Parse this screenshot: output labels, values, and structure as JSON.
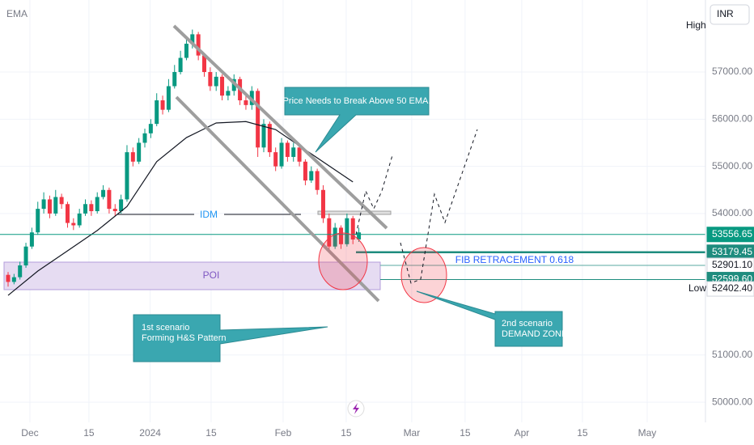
{
  "chart_data": {
    "type": "candlestick",
    "currency": "INR",
    "up_color": "#089981",
    "down_color": "#f23645",
    "ohlc": [
      [
        52700,
        52760,
        52450,
        52550
      ],
      [
        52550,
        52720,
        52500,
        52650
      ],
      [
        52650,
        52980,
        52600,
        52900
      ],
      [
        52900,
        53380,
        52850,
        53300
      ],
      [
        53300,
        53700,
        53250,
        53600
      ],
      [
        53600,
        54250,
        53550,
        54100
      ],
      [
        54100,
        54450,
        54000,
        54300
      ],
      [
        54300,
        54380,
        53900,
        54000
      ],
      [
        54000,
        54500,
        53950,
        54350
      ],
      [
        54350,
        54420,
        54100,
        54200
      ],
      [
        54200,
        54250,
        53700,
        53800
      ],
      [
        53800,
        53900,
        53650,
        53750
      ],
      [
        53750,
        54100,
        53700,
        54000
      ],
      [
        54000,
        54300,
        53950,
        54200
      ],
      [
        54200,
        54280,
        53950,
        54050
      ],
      [
        54050,
        54450,
        54000,
        54350
      ],
      [
        54350,
        54600,
        54300,
        54500
      ],
      [
        54500,
        54550,
        54000,
        54100
      ],
      [
        54100,
        54200,
        53950,
        54050
      ],
      [
        54050,
        54400,
        54000,
        54300
      ],
      [
        54300,
        55450,
        54250,
        55300
      ],
      [
        55300,
        55400,
        55000,
        55100
      ],
      [
        55100,
        55600,
        55050,
        55500
      ],
      [
        55500,
        55800,
        55400,
        55700
      ],
      [
        55700,
        56000,
        55600,
        55900
      ],
      [
        55900,
        56550,
        55850,
        56400
      ],
      [
        56400,
        56500,
        56100,
        56200
      ],
      [
        56200,
        56850,
        56150,
        56700
      ],
      [
        56700,
        57150,
        56650,
        57000
      ],
      [
        57000,
        57450,
        56950,
        57300
      ],
      [
        57300,
        57750,
        57250,
        57600
      ],
      [
        57600,
        57900,
        57500,
        57800
      ],
      [
        57800,
        57850,
        57250,
        57350
      ],
      [
        57350,
        57400,
        56900,
        57000
      ],
      [
        57000,
        57100,
        56600,
        56700
      ],
      [
        56700,
        57000,
        56600,
        56900
      ],
      [
        56900,
        56950,
        56400,
        56500
      ],
      [
        56500,
        56700,
        56400,
        56600
      ],
      [
        56600,
        56950,
        56500,
        56850
      ],
      [
        56850,
        56900,
        56300,
        56400
      ],
      [
        56400,
        56500,
        56200,
        56300
      ],
      [
        56300,
        56700,
        56200,
        56600
      ],
      [
        56600,
        56650,
        55200,
        55400
      ],
      [
        55400,
        56000,
        55300,
        55900
      ],
      [
        55900,
        55950,
        55200,
        55300
      ],
      [
        55300,
        55400,
        54900,
        55000
      ],
      [
        55000,
        55600,
        54950,
        55500
      ],
      [
        55500,
        55550,
        55100,
        55200
      ],
      [
        55200,
        55500,
        55100,
        55400
      ],
      [
        55400,
        55450,
        55000,
        55100
      ],
      [
        55100,
        55150,
        54600,
        54700
      ],
      [
        54700,
        55000,
        54650,
        54900
      ],
      [
        54900,
        54950,
        54400,
        54500
      ],
      [
        54500,
        54600,
        53800,
        53900
      ],
      [
        53900,
        54000,
        53200,
        53300
      ],
      [
        53300,
        53800,
        53250,
        53700
      ],
      [
        53700,
        53750,
        53250,
        53350
      ],
      [
        53350,
        54000,
        53300,
        53900
      ],
      [
        53900,
        53950,
        53350,
        53450
      ],
      [
        53450,
        53700,
        53400,
        53600
      ]
    ],
    "ema": {
      "name": "EMA",
      "color": "#131722",
      "x": [
        0,
        5,
        10,
        15,
        20,
        25,
        30,
        35,
        40,
        45,
        50,
        55,
        58
      ],
      "values": [
        52265,
        52780,
        53210,
        53640,
        54150,
        55100,
        55610,
        55920,
        55950,
        55780,
        55350,
        54925,
        54670
      ]
    },
    "xlim": [
      -1.36,
      117.3
    ],
    "xticks": [
      {
        "value": 3.67,
        "label": "Dec"
      },
      {
        "value": 13.6,
        "label": "15"
      },
      {
        "value": 23.9,
        "label": "2024"
      },
      {
        "value": 34.15,
        "label": "15"
      },
      {
        "value": 46.26,
        "label": "Feb"
      },
      {
        "value": 56.87,
        "label": "15"
      },
      {
        "value": 67.89,
        "label": "Mar"
      },
      {
        "value": 76.87,
        "label": "15"
      },
      {
        "value": 86.4,
        "label": "Apr"
      },
      {
        "value": 96.6,
        "label": "15"
      },
      {
        "value": 107.5,
        "label": "May"
      }
    ],
    "ylim": [
      49573,
      58527
    ],
    "yticks": [
      {
        "value": 50000,
        "label": "50000.00"
      },
      {
        "value": 51000,
        "label": "51000.00"
      },
      {
        "value": 54000,
        "label": "54000.00"
      },
      {
        "value": 55000,
        "label": "55000.00"
      },
      {
        "value": 56000,
        "label": "56000.00"
      },
      {
        "value": 57000,
        "label": "57000.00"
      }
    ],
    "grid": true,
    "high_label": "High",
    "price_lines": [
      {
        "value": 53556.65,
        "label": "53556.65",
        "color": "#089981"
      },
      {
        "value": 53179.45,
        "label": "53179.45",
        "color": "#1e8c7e"
      },
      {
        "value": 52901.1,
        "label": "52901.10",
        "color": "#5aa9a0"
      },
      {
        "value": 52599.6,
        "label": "52599.60",
        "color": "#1e8c7e"
      },
      {
        "name": "Low",
        "value": 52402.4,
        "label": "52402.40",
        "color": "#787b86"
      }
    ],
    "annotations": {
      "ema_note": "Price Needs to Break Above 50 EMA.",
      "idm": "IDM",
      "poi": "POI",
      "fib": "FIB RETRACEMENT 0.618",
      "scenario1": [
        "1st scenario",
        "Forming H&S Pattern"
      ],
      "scenario2": [
        "2nd scenario",
        "DEMAND ZONE"
      ]
    }
  }
}
